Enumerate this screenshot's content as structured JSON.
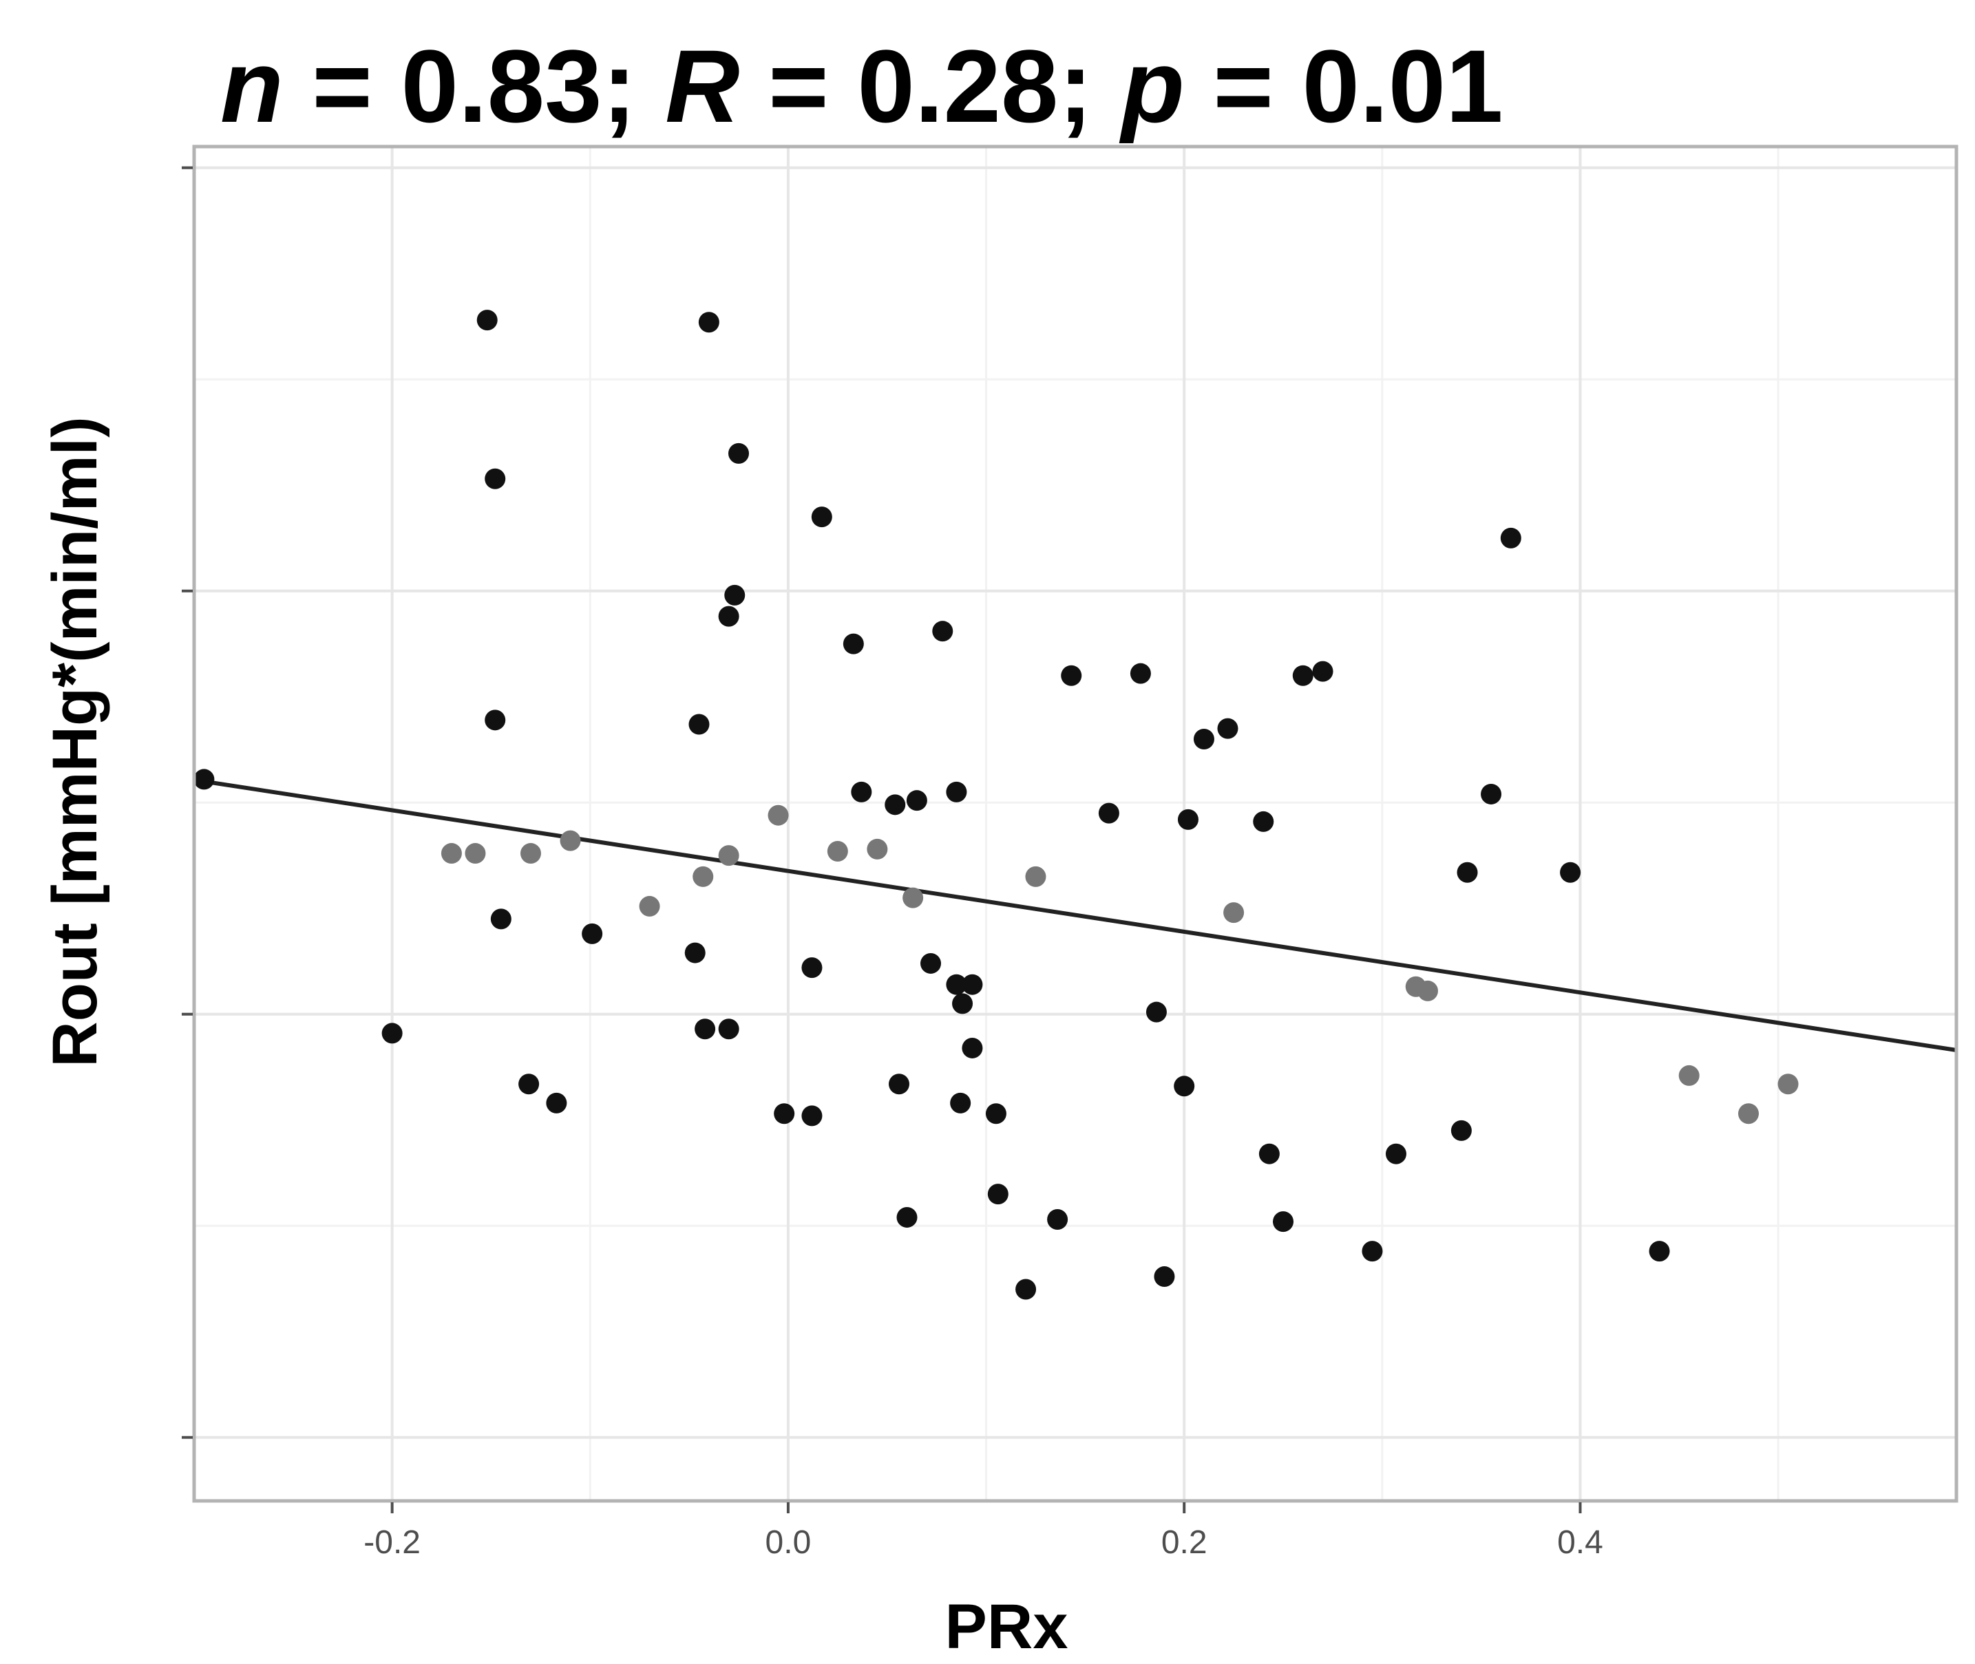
{
  "chart_data": {
    "type": "scatter",
    "title": {
      "n_symbol": "n",
      "n_value": " = 0.83; ",
      "r_symbol": "R",
      "r_value": " = 0.28; ",
      "p_symbol": "p",
      "p_value": " = 0.01"
    },
    "xlabel": "PRx",
    "ylabel": "Rout [mmHg*(min/ml)",
    "xlim": [
      -0.3,
      0.59
    ],
    "x_ticks": [
      -0.2,
      0.0,
      0.2,
      0.4
    ],
    "x_tick_labels": [
      "-0.2",
      "0.0",
      "0.2",
      "0.4"
    ],
    "ylim": [
      -0.15,
      3.05
    ],
    "y_ticks": [
      0,
      1,
      2,
      3
    ],
    "y_tick_labels": [
      "",
      "",
      "",
      ""
    ],
    "grid": true,
    "point_color": "#111111",
    "faded_point_color": "#777777",
    "line_color": "#222222",
    "trend_line": [
      [
        -0.295,
        1.55
      ],
      [
        0.59,
        0.915
      ]
    ],
    "points": [
      [
        -0.295,
        1.555,
        0
      ],
      [
        -0.2,
        0.955,
        0
      ],
      [
        -0.17,
        1.38,
        1
      ],
      [
        -0.158,
        1.38,
        1
      ],
      [
        -0.152,
        2.64,
        0
      ],
      [
        -0.148,
        2.265,
        0
      ],
      [
        -0.148,
        1.695,
        0
      ],
      [
        -0.145,
        1.225,
        0
      ],
      [
        -0.13,
        1.38,
        1
      ],
      [
        -0.131,
        0.835,
        0
      ],
      [
        -0.117,
        0.79,
        0
      ],
      [
        -0.11,
        1.41,
        1
      ],
      [
        -0.099,
        1.19,
        0
      ],
      [
        -0.07,
        1.255,
        1
      ],
      [
        -0.047,
        1.145,
        0
      ],
      [
        -0.045,
        1.685,
        0
      ],
      [
        -0.043,
        1.325,
        1
      ],
      [
        -0.042,
        0.965,
        0
      ],
      [
        -0.04,
        2.635,
        0
      ],
      [
        -0.03,
        0.965,
        0
      ],
      [
        -0.03,
        1.375,
        1
      ],
      [
        -0.03,
        1.94,
        0
      ],
      [
        -0.027,
        1.99,
        0
      ],
      [
        -0.025,
        2.325,
        0
      ],
      [
        -0.005,
        1.47,
        1
      ],
      [
        -0.002,
        0.765,
        0
      ],
      [
        0.012,
        1.11,
        0
      ],
      [
        0.017,
        2.175,
        0
      ],
      [
        0.012,
        0.76,
        0
      ],
      [
        0.025,
        1.385,
        1
      ],
      [
        0.033,
        1.875,
        0
      ],
      [
        0.037,
        1.525,
        0
      ],
      [
        0.045,
        1.39,
        1
      ],
      [
        0.054,
        1.495,
        0
      ],
      [
        0.056,
        0.835,
        0
      ],
      [
        0.06,
        0.52,
        0
      ],
      [
        0.063,
        1.275,
        1
      ],
      [
        0.065,
        1.505,
        0
      ],
      [
        0.072,
        1.12,
        0
      ],
      [
        0.078,
        1.905,
        0
      ],
      [
        0.085,
        1.525,
        0
      ],
      [
        0.085,
        1.07,
        0
      ],
      [
        0.087,
        0.79,
        0
      ],
      [
        0.088,
        1.025,
        0
      ],
      [
        0.093,
        1.07,
        0
      ],
      [
        0.093,
        0.92,
        0
      ],
      [
        0.105,
        0.765,
        0
      ],
      [
        0.106,
        0.575,
        0
      ],
      [
        0.12,
        0.35,
        0
      ],
      [
        0.125,
        1.325,
        1
      ],
      [
        0.136,
        0.515,
        0
      ],
      [
        0.143,
        1.8,
        0
      ],
      [
        0.162,
        1.475,
        0
      ],
      [
        0.178,
        1.805,
        0
      ],
      [
        0.186,
        1.005,
        0
      ],
      [
        0.19,
        0.38,
        0
      ],
      [
        0.202,
        1.46,
        0
      ],
      [
        0.2,
        0.83,
        0
      ],
      [
        0.21,
        1.65,
        0
      ],
      [
        0.222,
        1.675,
        0
      ],
      [
        0.225,
        1.24,
        1
      ],
      [
        0.24,
        1.455,
        0
      ],
      [
        0.243,
        0.67,
        0
      ],
      [
        0.25,
        0.51,
        0
      ],
      [
        0.26,
        1.8,
        0
      ],
      [
        0.27,
        1.81,
        0
      ],
      [
        0.295,
        0.44,
        0
      ],
      [
        0.307,
        0.67,
        0
      ],
      [
        0.317,
        1.065,
        1
      ],
      [
        0.323,
        1.055,
        1
      ],
      [
        0.34,
        0.725,
        0
      ],
      [
        0.343,
        1.335,
        0
      ],
      [
        0.355,
        1.52,
        0
      ],
      [
        0.365,
        2.125,
        0
      ],
      [
        0.395,
        1.335,
        0
      ],
      [
        0.44,
        0.44,
        0
      ],
      [
        0.455,
        0.855,
        1
      ],
      [
        0.485,
        0.765,
        1
      ],
      [
        0.505,
        0.835,
        1
      ]
    ]
  }
}
